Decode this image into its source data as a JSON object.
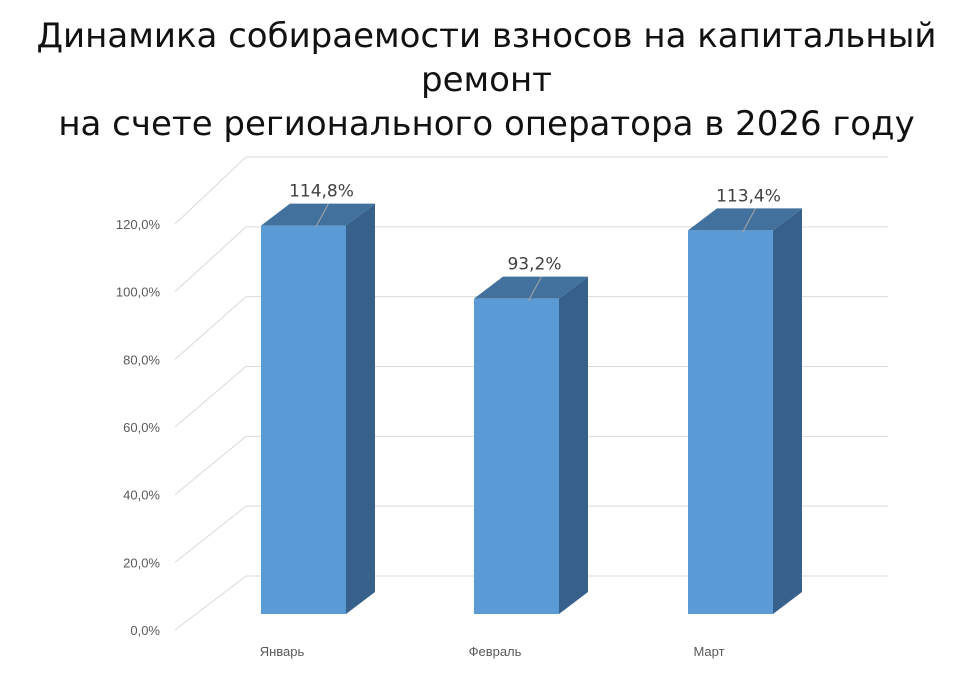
{
  "title_line1": "Динамика собираемости взносов на капитальный ремонт",
  "title_line2": "на счете регионального оператора в 2026 году",
  "chart_data": {
    "type": "bar",
    "title": "Динамика собираемости взносов на капитальный ремонт на счете регионального оператора в 2026 году",
    "categories": [
      "Январь",
      "Февраль",
      "Март"
    ],
    "values": [
      114.8,
      93.2,
      113.4
    ],
    "data_labels": [
      "114,8%",
      "93,2%",
      "113,4%"
    ],
    "ylim": [
      0,
      120
    ],
    "yticks": [
      "0,0%",
      "20,0%",
      "40,0%",
      "60,0%",
      "80,0%",
      "100,0%",
      "120,0%"
    ],
    "grid": true,
    "legend": "none",
    "style": "3d-column",
    "colors": {
      "front": "#5b9bd5",
      "top": "#41719c",
      "side": "#37618a",
      "grid": "#d9d9d9",
      "leader": "#a6a6a6"
    }
  }
}
